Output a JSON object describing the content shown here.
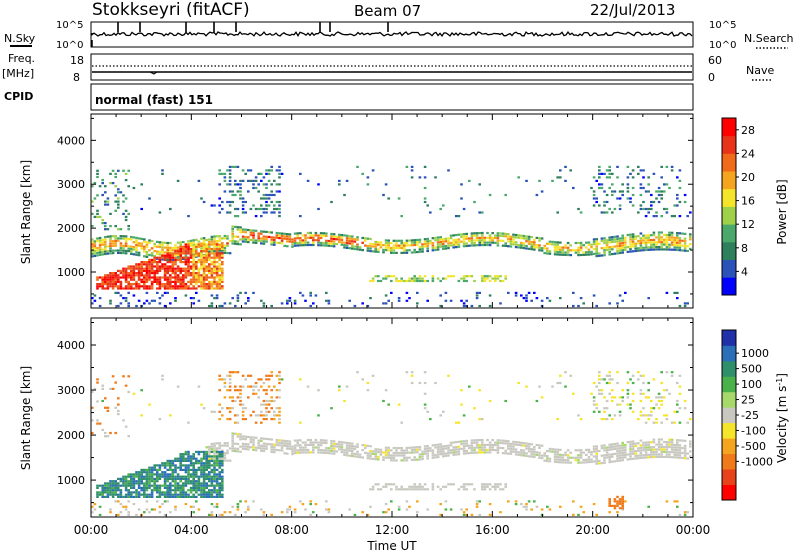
{
  "header": {
    "title": "Stokkseyri (fitACF)",
    "beam": "Beam 07",
    "date": "22/Jul/2013"
  },
  "side_labels": {
    "n_sky": "N.Sky",
    "n_search": "N.Search",
    "freq_top": "Freq.",
    "freq_unit": "[MHz]",
    "nave": "Nave",
    "cpid": "CPID",
    "cpid_value": "normal (fast) 151"
  },
  "strip_axes": {
    "nsky_ticks": [
      "10^5",
      "10^0"
    ],
    "nsearch_ticks": [
      "10^5",
      "10^0"
    ],
    "freq_ticks": [
      "18",
      "8"
    ],
    "nave_ticks": [
      "60",
      "0"
    ]
  },
  "chart_data": [
    {
      "type": "heatmap",
      "name": "power",
      "ylabel": "Slant Range [km]",
      "xlabel": "Time UT",
      "x_ticks": [
        "00:00",
        "04:00",
        "08:00",
        "12:00",
        "16:00",
        "20:00",
        "00:00"
      ],
      "xlim": [
        0,
        24
      ],
      "y_ticks": [
        1000,
        2000,
        3000,
        4000
      ],
      "ylim": [
        180,
        4600
      ],
      "colorbar": {
        "label": "Power [dB]",
        "ticks": [
          4,
          8,
          12,
          16,
          20,
          24,
          28
        ],
        "range": [
          0,
          30
        ],
        "colors": [
          "#0000ff",
          "#2a52b8",
          "#2e7f5c",
          "#49a86a",
          "#9ed04a",
          "#f5e52a",
          "#f5a41f",
          "#f06a1a",
          "#e8321a",
          "#ff0000"
        ]
      }
    },
    {
      "type": "heatmap",
      "name": "velocity",
      "ylabel": "Slant Range [km]",
      "xlabel": "Time UT",
      "x_ticks": [
        "00:00",
        "04:00",
        "08:00",
        "12:00",
        "16:00",
        "20:00",
        "00:00"
      ],
      "xlim": [
        0,
        24
      ],
      "y_ticks": [
        1000,
        2000,
        3000,
        4000
      ],
      "ylim": [
        180,
        4600
      ],
      "colorbar": {
        "label": "Velocity [m s^-1]",
        "ticks": [
          "1000",
          "500",
          "100",
          "25",
          "-25",
          "-100",
          "-500",
          "-1000"
        ],
        "colors": [
          "#2030a8",
          "#2a6fb8",
          "#2e8f6a",
          "#49b04a",
          "#a6d86a",
          "#c8c8c0",
          "#f5e52a",
          "#f5a41f",
          "#f07a1a",
          "#e8421a",
          "#ff0000"
        ]
      }
    }
  ]
}
